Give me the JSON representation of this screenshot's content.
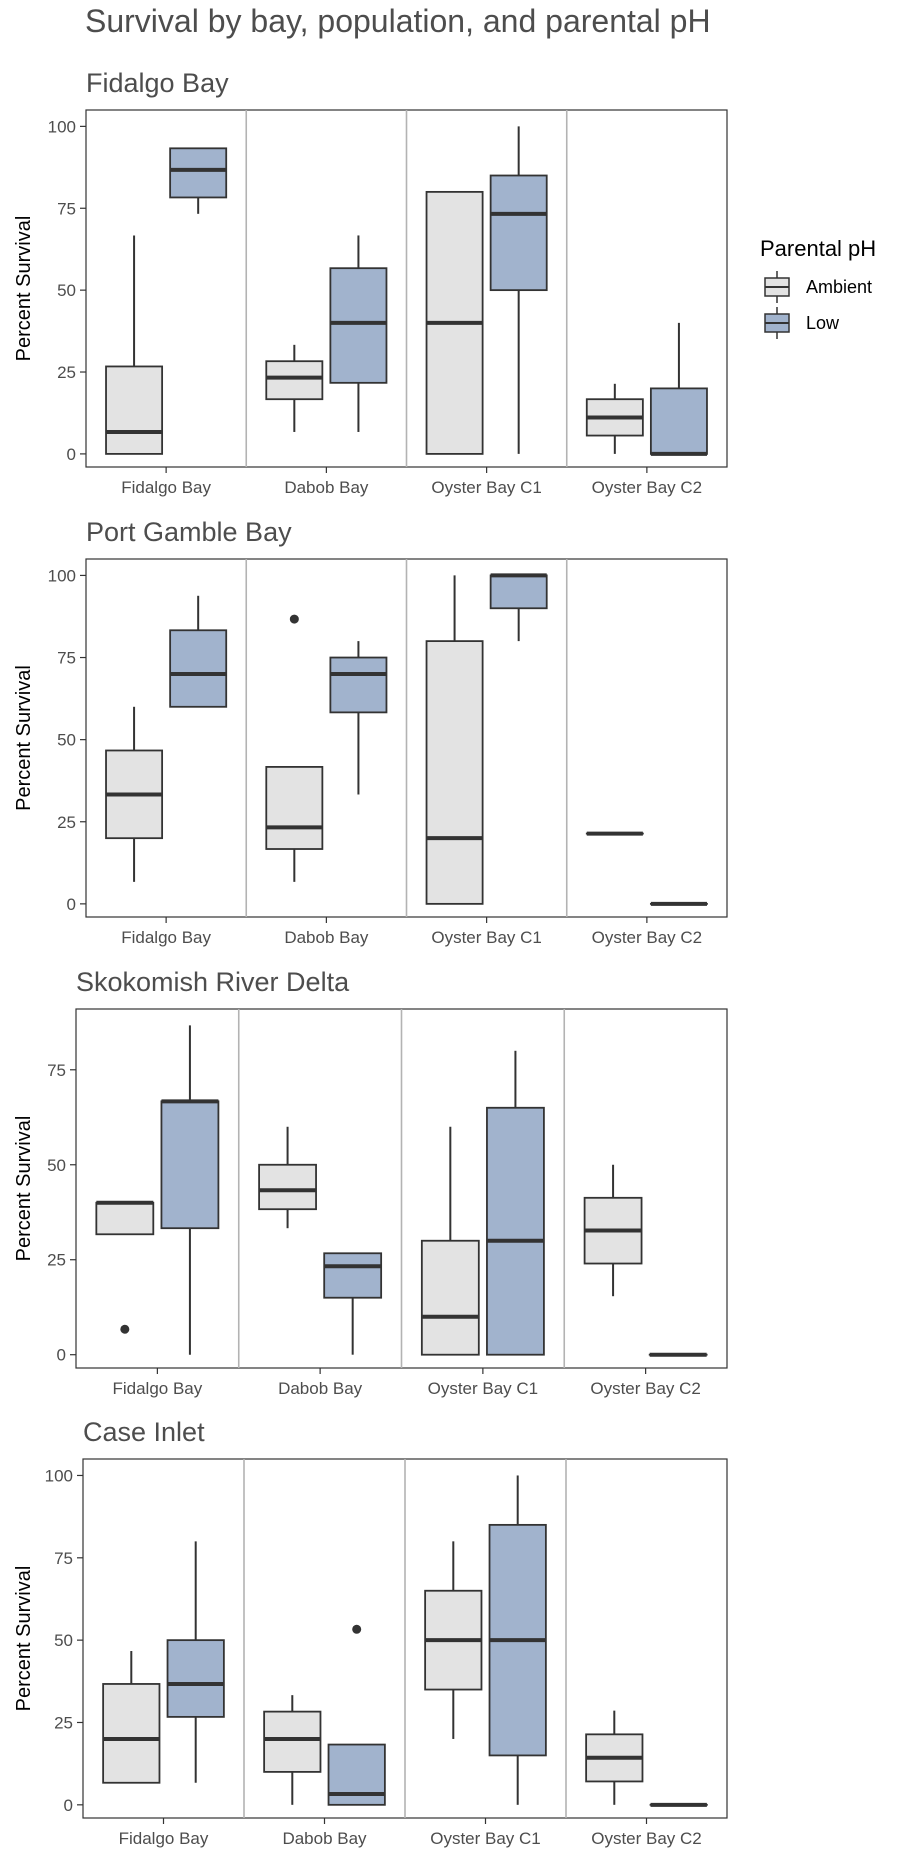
{
  "title": "Survival by bay, population, and parental pH",
  "legend": {
    "title": "Parental pH",
    "items": [
      {
        "label": "Ambient",
        "color": "#e3e3e3"
      },
      {
        "label": "Low",
        "color": "#a1b3cd"
      }
    ]
  },
  "colors": {
    "ambient": "#e3e3e3",
    "low": "#a1b3cd",
    "outline": "#333333",
    "divider": "#b3b3b3"
  },
  "chart_data": [
    {
      "type": "box",
      "title": "Fidalgo Bay",
      "ylabel": "Percent Survival",
      "ylim": [
        -4,
        105
      ],
      "yticks": [
        0,
        25,
        50,
        75,
        100
      ],
      "categories": [
        "Fidalgo Bay",
        "Dabob Bay",
        "Oyster Bay C1",
        "Oyster Bay C2"
      ],
      "series": [
        {
          "name": "Ambient",
          "boxes": [
            {
              "min": 0,
              "q1": 0,
              "median": 6.7,
              "q3": 26.7,
              "max": 66.7,
              "outliers": []
            },
            {
              "min": 6.7,
              "q1": 16.7,
              "median": 23.3,
              "q3": 28.3,
              "max": 33.3,
              "outliers": []
            },
            {
              "min": 0,
              "q1": 0,
              "median": 40,
              "q3": 80,
              "max": 80,
              "outliers": []
            },
            {
              "min": 0,
              "q1": 5.6,
              "median": 11.1,
              "q3": 16.7,
              "max": 21.4,
              "outliers": []
            }
          ]
        },
        {
          "name": "Low",
          "boxes": [
            {
              "min": 73.3,
              "q1": 78.3,
              "median": 86.7,
              "q3": 93.3,
              "max": 93.3,
              "outliers": []
            },
            {
              "min": 6.7,
              "q1": 21.7,
              "median": 40,
              "q3": 56.7,
              "max": 66.7,
              "outliers": []
            },
            {
              "min": 0,
              "q1": 50,
              "median": 73.3,
              "q3": 85,
              "max": 100,
              "outliers": []
            },
            {
              "min": 0,
              "q1": 0,
              "median": 0,
              "q3": 20,
              "max": 40,
              "outliers": []
            }
          ]
        }
      ]
    },
    {
      "type": "box",
      "title": "Port Gamble Bay",
      "ylabel": "Percent Survival",
      "ylim": [
        -4,
        105
      ],
      "yticks": [
        0,
        25,
        50,
        75,
        100
      ],
      "categories": [
        "Fidalgo Bay",
        "Dabob Bay",
        "Oyster Bay C1",
        "Oyster Bay C2"
      ],
      "series": [
        {
          "name": "Ambient",
          "boxes": [
            {
              "min": 6.7,
              "q1": 20,
              "median": 33.3,
              "q3": 46.7,
              "max": 60,
              "outliers": []
            },
            {
              "min": 6.7,
              "q1": 16.7,
              "median": 23.3,
              "q3": 41.7,
              "max": 41.7,
              "outliers": [
                86.7
              ]
            },
            {
              "min": 0,
              "q1": 0,
              "median": 20,
              "q3": 80,
              "max": 100,
              "outliers": []
            },
            {
              "min": 21.4,
              "q1": 21.4,
              "median": 21.4,
              "q3": 21.4,
              "max": 21.4,
              "outliers": []
            }
          ]
        },
        {
          "name": "Low",
          "boxes": [
            {
              "min": 60,
              "q1": 60,
              "median": 70,
              "q3": 83.3,
              "max": 93.8,
              "outliers": []
            },
            {
              "min": 33.3,
              "q1": 58.3,
              "median": 70,
              "q3": 75,
              "max": 80,
              "outliers": []
            },
            {
              "min": 80,
              "q1": 90,
              "median": 100,
              "q3": 100,
              "max": 100,
              "outliers": []
            },
            {
              "min": 0,
              "q1": 0,
              "median": 0,
              "q3": 0,
              "max": 0,
              "outliers": []
            }
          ]
        }
      ]
    },
    {
      "type": "box",
      "title": "Skokomish River Delta",
      "ylabel": "Percent Survival",
      "ylim": [
        -3.5,
        91
      ],
      "yticks": [
        0,
        25,
        50,
        75
      ],
      "categories": [
        "Fidalgo Bay",
        "Dabob Bay",
        "Oyster Bay C1",
        "Oyster Bay C2"
      ],
      "series": [
        {
          "name": "Ambient",
          "boxes": [
            {
              "min": 31.7,
              "q1": 31.7,
              "median": 40,
              "q3": 40,
              "max": 40,
              "outliers": [
                6.7
              ]
            },
            {
              "min": 33.3,
              "q1": 38.3,
              "median": 43.3,
              "q3": 50,
              "max": 60,
              "outliers": []
            },
            {
              "min": 0,
              "q1": 0,
              "median": 10,
              "q3": 30,
              "max": 60,
              "outliers": []
            },
            {
              "min": 15.4,
              "q1": 24,
              "median": 32.7,
              "q3": 41.3,
              "max": 50,
              "outliers": []
            }
          ]
        },
        {
          "name": "Low",
          "boxes": [
            {
              "min": 0,
              "q1": 33.3,
              "median": 66.7,
              "q3": 66.7,
              "max": 86.7,
              "outliers": []
            },
            {
              "min": 0,
              "q1": 15,
              "median": 23.3,
              "q3": 26.7,
              "max": 26.7,
              "outliers": []
            },
            {
              "min": 0,
              "q1": 0,
              "median": 30,
              "q3": 65,
              "max": 80,
              "outliers": []
            },
            {
              "min": 0,
              "q1": 0,
              "median": 0,
              "q3": 0,
              "max": 0,
              "outliers": []
            }
          ]
        }
      ]
    },
    {
      "type": "box",
      "title": "Case Inlet",
      "ylabel": "Percent Survival",
      "ylim": [
        -4,
        105
      ],
      "yticks": [
        0,
        25,
        50,
        75,
        100
      ],
      "categories": [
        "Fidalgo Bay",
        "Dabob Bay",
        "Oyster Bay C1",
        "Oyster Bay C2"
      ],
      "series": [
        {
          "name": "Ambient",
          "boxes": [
            {
              "min": 6.7,
              "q1": 6.7,
              "median": 20,
              "q3": 36.7,
              "max": 46.7,
              "outliers": []
            },
            {
              "min": 0,
              "q1": 10,
              "median": 20,
              "q3": 28.3,
              "max": 33.3,
              "outliers": []
            },
            {
              "min": 20,
              "q1": 35,
              "median": 50,
              "q3": 65,
              "max": 80,
              "outliers": []
            },
            {
              "min": 0,
              "q1": 7.1,
              "median": 14.3,
              "q3": 21.4,
              "max": 28.6,
              "outliers": []
            }
          ]
        },
        {
          "name": "Low",
          "boxes": [
            {
              "min": 6.7,
              "q1": 26.7,
              "median": 36.7,
              "q3": 50,
              "max": 80,
              "outliers": []
            },
            {
              "min": 0,
              "q1": 0,
              "median": 3.3,
              "q3": 18.3,
              "max": 18.3,
              "outliers": [
                53.3
              ]
            },
            {
              "min": 0,
              "q1": 15,
              "median": 50,
              "q3": 85,
              "max": 100,
              "outliers": []
            },
            {
              "min": 0,
              "q1": 0,
              "median": 0,
              "q3": 0,
              "max": 0,
              "outliers": []
            }
          ]
        }
      ]
    }
  ]
}
